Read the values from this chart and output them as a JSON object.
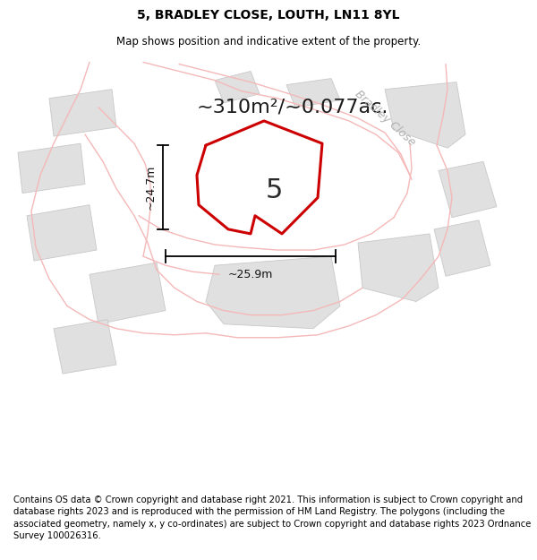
{
  "title": "5, BRADLEY CLOSE, LOUTH, LN11 8YL",
  "subtitle": "Map shows position and indicative extent of the property.",
  "footer": "Contains OS data © Crown copyright and database right 2021. This information is subject to Crown copyright and database rights 2023 and is reproduced with the permission of HM Land Registry. The polygons (including the associated geometry, namely x, y co-ordinates) are subject to Crown copyright and database rights 2023 Ordnance Survey 100026316.",
  "area_text": "~310m²/~0.077ac.",
  "street_label": "Bradley Close",
  "dim_vertical": "~24.7m",
  "dim_horizontal": "~25.9m",
  "plot_number": "5",
  "plot_color": "#cc0000",
  "road_color": "#f5b8b8",
  "gray_poly_fill": "#e0e0e0",
  "gray_poly_edge": "#c8c8c8",
  "title_fontsize": 10,
  "subtitle_fontsize": 8.5,
  "footer_fontsize": 7.2,
  "area_fontsize": 16,
  "plot_label_fontsize": 22,
  "dim_fontsize": 9,
  "street_fontsize": 9
}
